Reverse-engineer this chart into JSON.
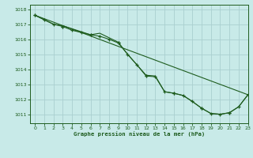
{
  "title": "Graphe pression niveau de la mer (hPa)",
  "background_color": "#c8eae8",
  "grid_color": "#aacfcf",
  "line_color": "#1e5c1e",
  "xlim": [
    -0.5,
    23
  ],
  "ylim": [
    1010.4,
    1018.3
  ],
  "yticks": [
    1011,
    1012,
    1013,
    1014,
    1015,
    1016,
    1017,
    1018
  ],
  "xticks": [
    0,
    1,
    2,
    3,
    4,
    5,
    6,
    7,
    8,
    9,
    10,
    11,
    12,
    13,
    14,
    15,
    16,
    17,
    18,
    19,
    20,
    21,
    22,
    23
  ],
  "series1_x": [
    0,
    1,
    2,
    3,
    4,
    5,
    6,
    7,
    8,
    9,
    10,
    11,
    12,
    13,
    14,
    15,
    16,
    17,
    18,
    19,
    20,
    21,
    22,
    23
  ],
  "series1_y": [
    1017.6,
    1017.3,
    1017.0,
    1016.9,
    1016.7,
    1016.5,
    1016.3,
    1016.4,
    1016.1,
    1015.8,
    1015.0,
    1014.3,
    1013.6,
    1013.55,
    1012.5,
    1012.4,
    1012.25,
    1011.85,
    1011.4,
    1011.05,
    1011.0,
    1011.1,
    1011.5,
    1012.3
  ],
  "series2_x": [
    0,
    1,
    2,
    3,
    4,
    5,
    6,
    7,
    8,
    9,
    10,
    11,
    12,
    13,
    14,
    15,
    16,
    17,
    18,
    19,
    20,
    21,
    22,
    23
  ],
  "series2_y": [
    1017.6,
    1017.3,
    1017.0,
    1016.85,
    1016.6,
    1016.45,
    1016.3,
    1016.2,
    1016.0,
    1015.75,
    1015.0,
    1014.3,
    1013.55,
    1013.5,
    1012.5,
    1012.4,
    1012.25,
    1011.85,
    1011.4,
    1011.05,
    1011.0,
    1011.1,
    1011.5,
    1012.3
  ],
  "series3_x": [
    0,
    23
  ],
  "series3_y": [
    1017.6,
    1012.3
  ],
  "series3_markers_x": [
    0,
    3,
    6,
    9,
    12,
    15,
    18,
    21,
    23
  ],
  "series3_markers_y": [
    1017.6,
    1016.85,
    1016.3,
    1015.75,
    1013.55,
    1012.4,
    1011.4,
    1011.1,
    1012.3
  ]
}
